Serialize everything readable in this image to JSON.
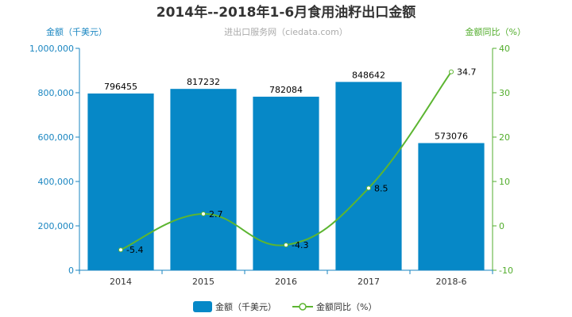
{
  "chart_data": {
    "type": "bar",
    "title": "2014年--2018年1-6月食用油籽出口金额",
    "subtitle": "进出口服务网（ciedata.com）",
    "categories": [
      "2014",
      "2015",
      "2016",
      "2017",
      "2018-6"
    ],
    "series": [
      {
        "name": "金额（千美元）",
        "type": "bar",
        "axis": "left",
        "values": [
          796455,
          817232,
          782084,
          848642,
          573076
        ],
        "labels": [
          "796455",
          "817232",
          "782084",
          "848642",
          "573076"
        ],
        "color": "#0688c7"
      },
      {
        "name": "金额同比（%）",
        "type": "line",
        "axis": "right",
        "values": [
          -5.4,
          2.7,
          -4.3,
          8.5,
          34.7
        ],
        "labels": [
          "-5.4",
          "2.7",
          "-4.3",
          "8.5",
          "34.7"
        ],
        "color": "#5cb531"
      }
    ],
    "ylabel_left": "金额（千美元）",
    "ylabel_right": "金额同比（%）",
    "ylim_left": [
      0,
      1000000
    ],
    "yticks_left": [
      "0",
      "200,000",
      "400,000",
      "600,000",
      "800,000",
      "1,000,000"
    ],
    "ylim_right": [
      -10,
      40
    ],
    "yticks_right": [
      "-10",
      "0",
      "10",
      "20",
      "30",
      "40"
    ],
    "grid": false,
    "legend_position": "bottom-center",
    "colors": {
      "left_axis": "#1a86c1",
      "right_axis": "#52ad2c"
    }
  }
}
